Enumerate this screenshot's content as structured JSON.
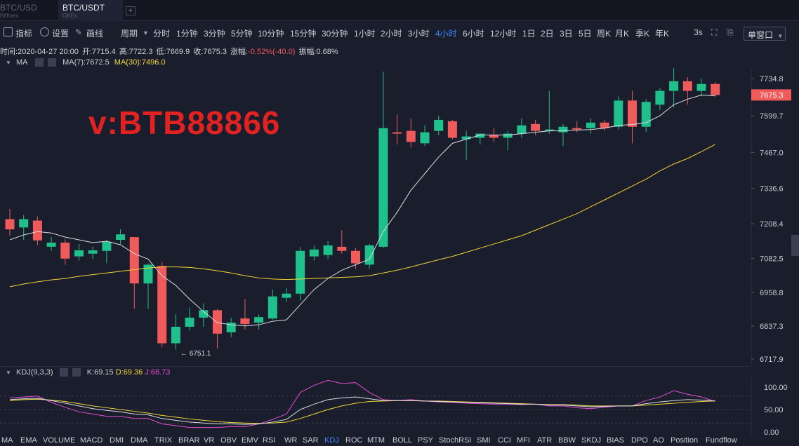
{
  "tabs": [
    {
      "symbol": "BTC/USD",
      "exchange": "Bitfinex"
    },
    {
      "symbol": "BTC/USDT",
      "exchange": "OKEx"
    }
  ],
  "tab_add_label": "+",
  "toolbar": {
    "indicator": "指标",
    "settings": "设置",
    "draw": "画线",
    "period": "周期",
    "timeframes": [
      "分时",
      "1分钟",
      "3分钟",
      "5分钟",
      "10分钟",
      "15分钟",
      "30分钟",
      "1小时",
      "2小时",
      "3小时",
      "4小时",
      "6小时",
      "12小时",
      "1日",
      "2日",
      "3日",
      "5日",
      "周K",
      "月K",
      "季K",
      "年K"
    ],
    "active_timeframe": "4小时",
    "refresh": "3s",
    "single_window": "单窗口"
  },
  "info": {
    "time": "时间:2020-04-27 20:00",
    "open": "开:7715.4",
    "high": "高:7722.3",
    "low": "低:7669.9",
    "close": "收:7675.3",
    "change_label": "涨幅:",
    "change_value": "-0.52%(-40.0)",
    "amplitude": "振幅:0.68%"
  },
  "ma_row": {
    "label": "MA",
    "ma7": "MA(7):7672.5",
    "ma30": "MA(30):7496.0"
  },
  "watermark": "v:BTB88866",
  "price_axis": [
    "7734.8",
    "7599.7",
    "7467.0",
    "7336.6",
    "7208.4",
    "7082.5",
    "6958.8",
    "6837.3",
    "6717.9"
  ],
  "current_price": "7675.3",
  "high_marker": "7795",
  "low_marker": "6751.1",
  "kdj_row": {
    "label": "KDJ(9,3,3)",
    "k": "K:69.15",
    "d": "D:69.36",
    "j": "J:68.73"
  },
  "kdj_axis": [
    "100.00",
    "50.00",
    "0.00"
  ],
  "indicators": [
    "MA",
    "EMA",
    "VOLUME",
    "MACD",
    "DMI",
    "DMA",
    "TRIX",
    "BRAR",
    "VR",
    "OBV",
    "EMV",
    "RSI",
    "WR",
    "SAR",
    "KDJ",
    "ROC",
    "MTM",
    "BOLL",
    "PSY",
    "StochRSI",
    "SMI",
    "CCI",
    "MFI",
    "ATR",
    "BBW",
    "SKDJ",
    "BIAS",
    "DPO",
    "AO",
    "Position",
    "Fundflow"
  ],
  "active_indicator": "KDJ",
  "colors": {
    "up": "#1fc08b",
    "down": "#ef5b5b",
    "ma7": "#d9dce3",
    "ma30": "#f1d638",
    "kdj_k": "#d9dce3",
    "kdj_d": "#f1d638",
    "kdj_j": "#e04fd2",
    "active": "#3d8bff"
  },
  "chart_data": {
    "type": "candlestick",
    "y_range": [
      6690,
      7800
    ],
    "candles": [
      {
        "o": 7225,
        "h": 7262,
        "l": 7165,
        "c": 7188
      },
      {
        "o": 7195,
        "h": 7240,
        "l": 7150,
        "c": 7225
      },
      {
        "o": 7220,
        "h": 7235,
        "l": 7130,
        "c": 7148
      },
      {
        "o": 7125,
        "h": 7160,
        "l": 7110,
        "c": 7140
      },
      {
        "o": 7140,
        "h": 7152,
        "l": 7060,
        "c": 7082
      },
      {
        "o": 7090,
        "h": 7135,
        "l": 7075,
        "c": 7112
      },
      {
        "o": 7100,
        "h": 7125,
        "l": 7080,
        "c": 7112
      },
      {
        "o": 7110,
        "h": 7150,
        "l": 7065,
        "c": 7143
      },
      {
        "o": 7150,
        "h": 7188,
        "l": 7135,
        "c": 7170
      },
      {
        "o": 7160,
        "h": 7155,
        "l": 6900,
        "c": 6992
      },
      {
        "o": 6992,
        "h": 7065,
        "l": 6900,
        "c": 7060
      },
      {
        "o": 7055,
        "h": 7070,
        "l": 6760,
        "c": 6775
      },
      {
        "o": 6775,
        "h": 6880,
        "l": 6752,
        "c": 6835
      },
      {
        "o": 6835,
        "h": 6905,
        "l": 6822,
        "c": 6868
      },
      {
        "o": 6868,
        "h": 6920,
        "l": 6835,
        "c": 6895
      },
      {
        "o": 6895,
        "h": 6900,
        "l": 6755,
        "c": 6810
      },
      {
        "o": 6815,
        "h": 6868,
        "l": 6798,
        "c": 6850
      },
      {
        "o": 6865,
        "h": 6935,
        "l": 6825,
        "c": 6845
      },
      {
        "o": 6850,
        "h": 6880,
        "l": 6825,
        "c": 6870
      },
      {
        "o": 6865,
        "h": 6970,
        "l": 6860,
        "c": 6945
      },
      {
        "o": 6940,
        "h": 6975,
        "l": 6925,
        "c": 6955
      },
      {
        "o": 6955,
        "h": 7125,
        "l": 6930,
        "c": 7110
      },
      {
        "o": 7090,
        "h": 7130,
        "l": 7075,
        "c": 7115
      },
      {
        "o": 7095,
        "h": 7145,
        "l": 7080,
        "c": 7130
      },
      {
        "o": 7125,
        "h": 7185,
        "l": 7100,
        "c": 7110
      },
      {
        "o": 7110,
        "h": 7120,
        "l": 7045,
        "c": 7065
      },
      {
        "o": 7060,
        "h": 7135,
        "l": 7045,
        "c": 7130
      },
      {
        "o": 7125,
        "h": 7760,
        "l": 7120,
        "c": 7555
      },
      {
        "o": 7540,
        "h": 7605,
        "l": 7495,
        "c": 7535
      },
      {
        "o": 7545,
        "h": 7590,
        "l": 7485,
        "c": 7505
      },
      {
        "o": 7500,
        "h": 7565,
        "l": 7490,
        "c": 7540
      },
      {
        "o": 7545,
        "h": 7600,
        "l": 7530,
        "c": 7585
      },
      {
        "o": 7580,
        "h": 7585,
        "l": 7515,
        "c": 7520
      },
      {
        "o": 7515,
        "h": 7545,
        "l": 7440,
        "c": 7525
      },
      {
        "o": 7520,
        "h": 7535,
        "l": 7495,
        "c": 7535
      },
      {
        "o": 7530,
        "h": 7555,
        "l": 7505,
        "c": 7520
      },
      {
        "o": 7520,
        "h": 7545,
        "l": 7475,
        "c": 7535
      },
      {
        "o": 7535,
        "h": 7590,
        "l": 7520,
        "c": 7565
      },
      {
        "o": 7570,
        "h": 7585,
        "l": 7530,
        "c": 7545
      },
      {
        "o": 7545,
        "h": 7690,
        "l": 7535,
        "c": 7550
      },
      {
        "o": 7540,
        "h": 7570,
        "l": 7490,
        "c": 7560
      },
      {
        "o": 7555,
        "h": 7580,
        "l": 7540,
        "c": 7550
      },
      {
        "o": 7555,
        "h": 7590,
        "l": 7535,
        "c": 7575
      },
      {
        "o": 7575,
        "h": 7585,
        "l": 7545,
        "c": 7555
      },
      {
        "o": 7560,
        "h": 7670,
        "l": 7550,
        "c": 7655
      },
      {
        "o": 7655,
        "h": 7690,
        "l": 7500,
        "c": 7560
      },
      {
        "o": 7560,
        "h": 7660,
        "l": 7540,
        "c": 7650
      },
      {
        "o": 7640,
        "h": 7700,
        "l": 7620,
        "c": 7690
      },
      {
        "o": 7690,
        "h": 7795,
        "l": 7630,
        "c": 7725
      },
      {
        "o": 7725,
        "h": 7740,
        "l": 7640,
        "c": 7690
      },
      {
        "o": 7690,
        "h": 7735,
        "l": 7670,
        "c": 7715
      },
      {
        "o": 7715,
        "h": 7722,
        "l": 7670,
        "c": 7675
      }
    ],
    "ma7": [
      7150,
      7168,
      7180,
      7175,
      7160,
      7150,
      7140,
      7145,
      7132,
      7100,
      7080,
      7020,
      6985,
      6935,
      6890,
      6850,
      6842,
      6838,
      6842,
      6855,
      6860,
      6915,
      6970,
      7010,
      7040,
      7060,
      7080,
      7180,
      7250,
      7330,
      7390,
      7450,
      7500,
      7515,
      7530,
      7530,
      7530,
      7535,
      7540,
      7545,
      7545,
      7548,
      7550,
      7555,
      7565,
      7568,
      7575,
      7600,
      7640,
      7660,
      7675,
      7672
    ],
    "ma30": [
      6980,
      6990,
      6998,
      7005,
      7010,
      7018,
      7024,
      7030,
      7036,
      7042,
      7048,
      7052,
      7052,
      7050,
      7045,
      7038,
      7030,
      7020,
      7012,
      7008,
      7006,
      7008,
      7010,
      7012,
      7014,
      7016,
      7020,
      7030,
      7040,
      7052,
      7065,
      7078,
      7090,
      7105,
      7120,
      7135,
      7150,
      7165,
      7185,
      7205,
      7225,
      7245,
      7270,
      7295,
      7320,
      7345,
      7370,
      7400,
      7425,
      7445,
      7470,
      7496
    ],
    "kdj_k": [
      72,
      74,
      75,
      70,
      64,
      58,
      52,
      48,
      45,
      40,
      38,
      30,
      26,
      22,
      20,
      18,
      18,
      17,
      18,
      22,
      28,
      50,
      62,
      72,
      76,
      78,
      74,
      70,
      70,
      70,
      69,
      68,
      67,
      66,
      65,
      64,
      63,
      62,
      62,
      60,
      60,
      58,
      56,
      57,
      58,
      58,
      63,
      67,
      70,
      72,
      71,
      69
    ],
    "kdj_d": [
      70,
      72,
      73,
      71,
      68,
      63,
      58,
      54,
      50,
      46,
      42,
      37,
      33,
      29,
      26,
      23,
      21,
      20,
      19,
      20,
      22,
      30,
      40,
      50,
      58,
      64,
      68,
      69,
      70,
      70,
      69,
      69,
      68,
      67,
      66,
      65,
      64,
      63,
      62,
      61,
      61,
      60,
      58,
      58,
      58,
      58,
      60,
      62,
      64,
      66,
      68,
      69
    ],
    "kdj_j": [
      76,
      78,
      80,
      66,
      55,
      45,
      40,
      35,
      35,
      30,
      30,
      18,
      14,
      10,
      10,
      10,
      12,
      12,
      18,
      28,
      40,
      88,
      104,
      115,
      108,
      110,
      88,
      72,
      70,
      72,
      69,
      67,
      66,
      64,
      63,
      62,
      62,
      61,
      62,
      58,
      58,
      54,
      52,
      55,
      58,
      58,
      70,
      78,
      92,
      84,
      78,
      68
    ]
  }
}
